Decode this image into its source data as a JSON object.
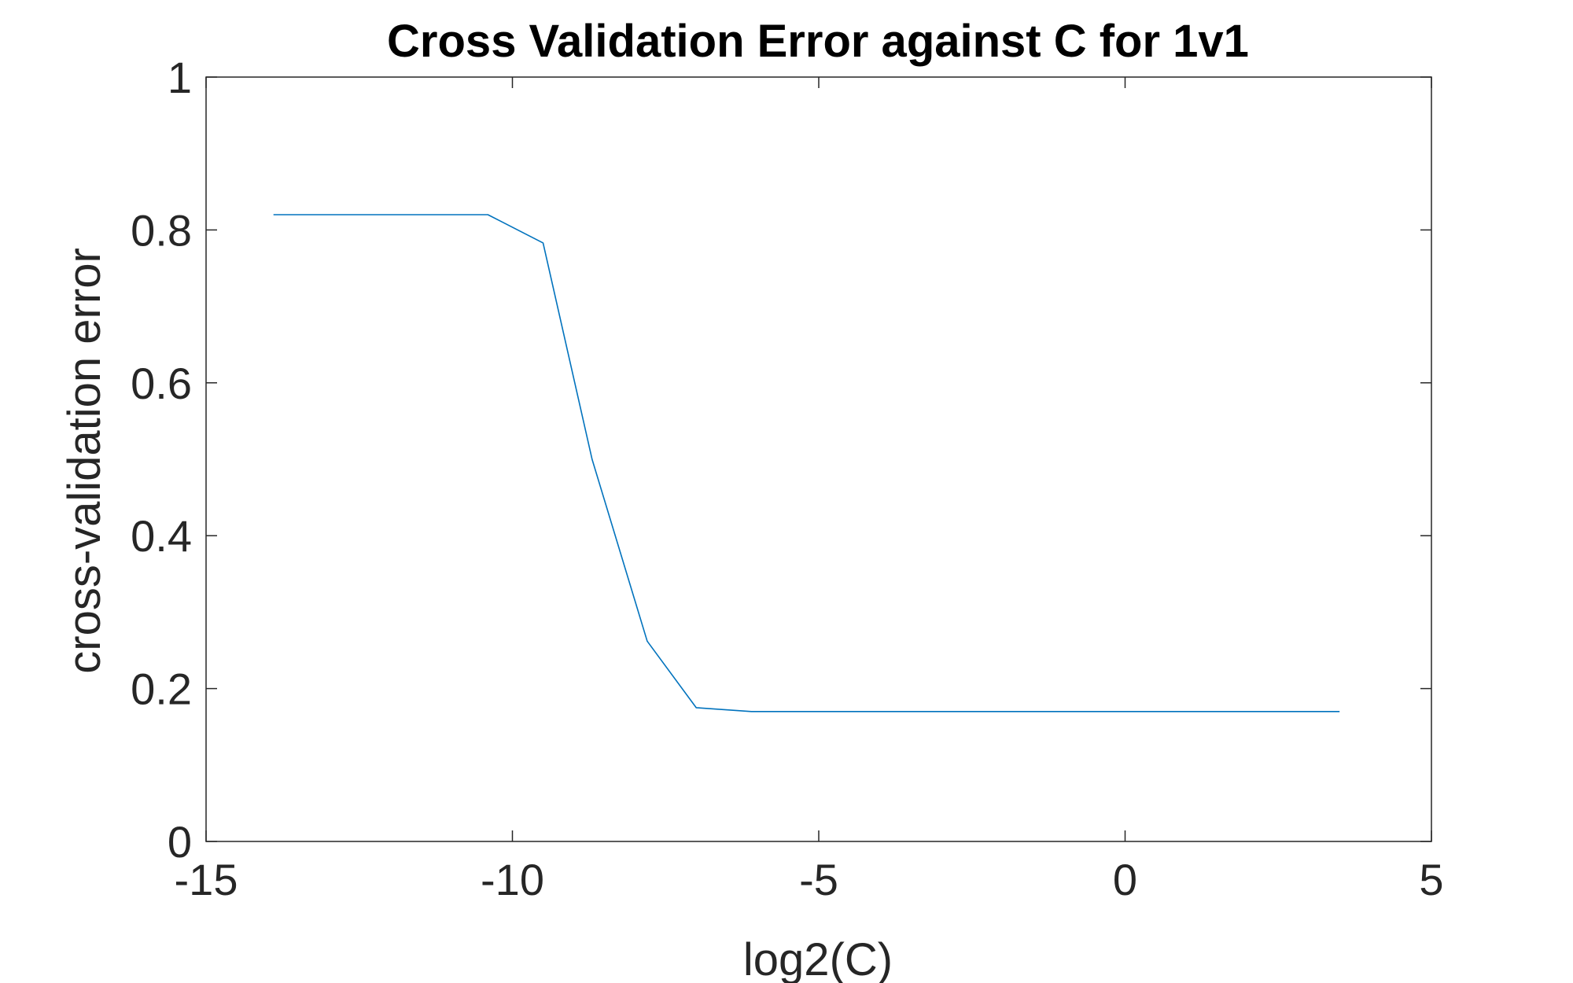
{
  "chart_data": {
    "type": "line",
    "title": "Cross Validation Error against C for 1v1",
    "xlabel": "log2(C)",
    "ylabel": "cross-validation error",
    "xlim": [
      -15,
      5
    ],
    "ylim": [
      0,
      1
    ],
    "xticks": [
      -15,
      -10,
      -5,
      0,
      5
    ],
    "yticks": [
      0,
      0.2,
      0.4,
      0.6,
      0.8,
      1
    ],
    "xtick_labels": [
      "-15",
      "-10",
      "-5",
      "0",
      "5"
    ],
    "ytick_labels": [
      "0",
      "0.2",
      "0.4",
      "0.6",
      "0.8",
      "1"
    ],
    "grid": false,
    "series": [
      {
        "color": "#0072bd",
        "x": [
          -13.9,
          -10.4,
          -9.5,
          -8.7,
          -7.8,
          -7.0,
          -6.1,
          -5.2,
          -4.3,
          -3.5,
          -2.6,
          -1.7,
          -0.9,
          0.0,
          0.9,
          1.7,
          2.6,
          3.5
        ],
        "y": [
          0.82,
          0.82,
          0.783,
          0.5,
          0.262,
          0.175,
          0.17,
          0.17,
          0.17,
          0.17,
          0.17,
          0.17,
          0.17,
          0.17,
          0.17,
          0.17,
          0.17,
          0.17
        ]
      }
    ]
  }
}
